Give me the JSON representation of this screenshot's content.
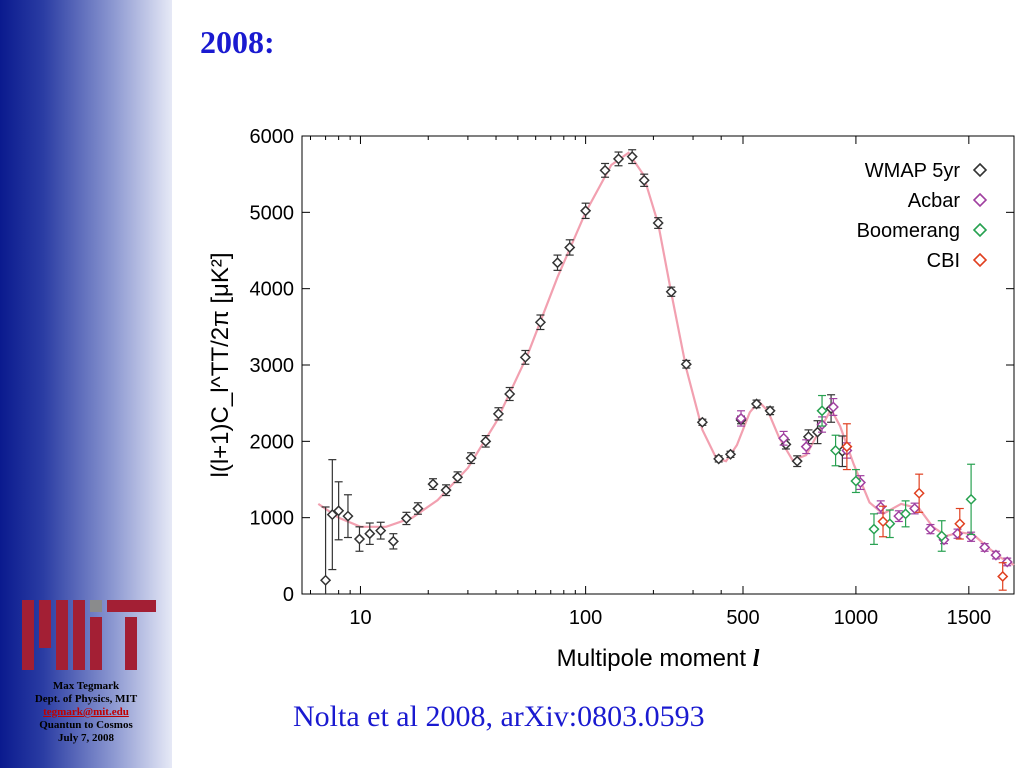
{
  "slide": {
    "title": "2008:",
    "citation": "Nolta et al 2008, arXiv:0803.0593"
  },
  "sidebar": {
    "logo_colors": {
      "red": "#a31f34",
      "gray": "#8a8b8c"
    },
    "footer": {
      "name": "Max Tegmark",
      "dept": "Dept. of Physics, MIT",
      "email": "tegmark@mit.edu",
      "event": "Quantun to Cosmos",
      "date": "July 7, 2008"
    }
  },
  "chart_data": {
    "type": "scatter",
    "title": "",
    "xlabel": "Multipole moment",
    "xlabel_symbol": "l",
    "ylabel": "l(l+1)C_l^TT/2π [μK²]",
    "x_scale": "log-linear hybrid (log up to l≈500, linear beyond)",
    "xlim": [
      5.5,
      1700
    ],
    "ylim": [
      0,
      6000
    ],
    "xticks": [
      10,
      100,
      500,
      1000,
      1500
    ],
    "yticks": [
      0,
      1000,
      2000,
      3000,
      4000,
      5000,
      6000
    ],
    "grid": false,
    "legend_position": "top-right",
    "series": [
      {
        "name": "WMAP 5yr",
        "color": "#333333",
        "points": [
          {
            "x": 7,
            "y": 180,
            "err": 960
          },
          {
            "x": 7.5,
            "y": 1040,
            "err": 720
          },
          {
            "x": 8,
            "y": 1090,
            "err": 380
          },
          {
            "x": 8.8,
            "y": 1020,
            "err": 280
          },
          {
            "x": 9.9,
            "y": 720,
            "err": 160
          },
          {
            "x": 11,
            "y": 790,
            "err": 140
          },
          {
            "x": 12.3,
            "y": 830,
            "err": 110
          },
          {
            "x": 14,
            "y": 690,
            "err": 100
          },
          {
            "x": 16,
            "y": 990,
            "err": 80
          },
          {
            "x": 18,
            "y": 1120,
            "err": 75
          },
          {
            "x": 21,
            "y": 1440,
            "err": 70
          },
          {
            "x": 24,
            "y": 1360,
            "err": 70
          },
          {
            "x": 27,
            "y": 1530,
            "err": 70
          },
          {
            "x": 31,
            "y": 1780,
            "err": 70
          },
          {
            "x": 36,
            "y": 2000,
            "err": 75
          },
          {
            "x": 41,
            "y": 2360,
            "err": 80
          },
          {
            "x": 46,
            "y": 2620,
            "err": 85
          },
          {
            "x": 54,
            "y": 3100,
            "err": 90
          },
          {
            "x": 63,
            "y": 3560,
            "err": 95
          },
          {
            "x": 75,
            "y": 4340,
            "err": 100
          },
          {
            "x": 85,
            "y": 4540,
            "err": 100
          },
          {
            "x": 100,
            "y": 5020,
            "err": 100
          },
          {
            "x": 122,
            "y": 5550,
            "err": 90
          },
          {
            "x": 140,
            "y": 5700,
            "err": 90
          },
          {
            "x": 161,
            "y": 5730,
            "err": 90
          },
          {
            "x": 182,
            "y": 5420,
            "err": 80
          },
          {
            "x": 210,
            "y": 4860,
            "err": 70
          },
          {
            "x": 240,
            "y": 3960,
            "err": 60
          },
          {
            "x": 280,
            "y": 3010,
            "err": 50
          },
          {
            "x": 330,
            "y": 2250,
            "err": 40
          },
          {
            "x": 390,
            "y": 1770,
            "err": 40
          },
          {
            "x": 440,
            "y": 1830,
            "err": 40
          },
          {
            "x": 490,
            "y": 2280,
            "err": 50
          },
          {
            "x": 560,
            "y": 2490,
            "err": 50
          },
          {
            "x": 620,
            "y": 2400,
            "err": 50
          },
          {
            "x": 690,
            "y": 1960,
            "err": 60
          },
          {
            "x": 740,
            "y": 1740,
            "err": 70
          },
          {
            "x": 790,
            "y": 2060,
            "err": 90
          },
          {
            "x": 830,
            "y": 2120,
            "err": 150
          },
          {
            "x": 890,
            "y": 2430,
            "err": 180
          },
          {
            "x": 940,
            "y": 1870,
            "err": 200
          }
        ]
      },
      {
        "name": "Acbar",
        "color": "#a040a0",
        "points": [
          {
            "x": 490,
            "y": 2300,
            "err": 100
          },
          {
            "x": 680,
            "y": 2040,
            "err": 90
          },
          {
            "x": 780,
            "y": 1930,
            "err": 90
          },
          {
            "x": 850,
            "y": 2220,
            "err": 100
          },
          {
            "x": 900,
            "y": 2450,
            "err": 110
          },
          {
            "x": 960,
            "y": 1880,
            "err": 100
          },
          {
            "x": 1020,
            "y": 1460,
            "err": 90
          },
          {
            "x": 1110,
            "y": 1140,
            "err": 80
          },
          {
            "x": 1190,
            "y": 1020,
            "err": 70
          },
          {
            "x": 1260,
            "y": 1120,
            "err": 70
          },
          {
            "x": 1330,
            "y": 850,
            "err": 60
          },
          {
            "x": 1390,
            "y": 710,
            "err": 50
          },
          {
            "x": 1450,
            "y": 790,
            "err": 60
          },
          {
            "x": 1510,
            "y": 750,
            "err": 60
          },
          {
            "x": 1570,
            "y": 610,
            "err": 50
          },
          {
            "x": 1620,
            "y": 510,
            "err": 50
          },
          {
            "x": 1670,
            "y": 420,
            "err": 50
          }
        ]
      },
      {
        "name": "Boomerang",
        "color": "#27a150",
        "points": [
          {
            "x": 850,
            "y": 2400,
            "err": 200
          },
          {
            "x": 910,
            "y": 1880,
            "err": 200
          },
          {
            "x": 1000,
            "y": 1480,
            "err": 150
          },
          {
            "x": 1080,
            "y": 850,
            "err": 200
          },
          {
            "x": 1150,
            "y": 920,
            "err": 180
          },
          {
            "x": 1220,
            "y": 1050,
            "err": 170
          },
          {
            "x": 1380,
            "y": 760,
            "err": 200
          },
          {
            "x": 1510,
            "y": 1240,
            "err": 460
          }
        ]
      },
      {
        "name": "CBI",
        "color": "#e04020",
        "points": [
          {
            "x": 960,
            "y": 1930,
            "err": 300
          },
          {
            "x": 1120,
            "y": 950,
            "err": 200
          },
          {
            "x": 1280,
            "y": 1320,
            "err": 250
          },
          {
            "x": 1460,
            "y": 920,
            "err": 200
          },
          {
            "x": 1650,
            "y": 230,
            "err": 180
          }
        ]
      }
    ],
    "model_curve": {
      "color": "#f2a0b0",
      "points": [
        [
          6.5,
          1180
        ],
        [
          8,
          1000
        ],
        [
          10,
          880
        ],
        [
          13,
          880
        ],
        [
          17,
          1000
        ],
        [
          22,
          1230
        ],
        [
          30,
          1650
        ],
        [
          40,
          2250
        ],
        [
          55,
          3120
        ],
        [
          75,
          4150
        ],
        [
          100,
          5000
        ],
        [
          130,
          5620
        ],
        [
          155,
          5780
        ],
        [
          180,
          5500
        ],
        [
          210,
          4850
        ],
        [
          240,
          3950
        ],
        [
          280,
          2950
        ],
        [
          330,
          2150
        ],
        [
          380,
          1780
        ],
        [
          420,
          1740
        ],
        [
          470,
          1950
        ],
        [
          530,
          2380
        ],
        [
          570,
          2520
        ],
        [
          610,
          2400
        ],
        [
          660,
          2050
        ],
        [
          720,
          1750
        ],
        [
          780,
          1820
        ],
        [
          840,
          2150
        ],
        [
          890,
          2420
        ],
        [
          930,
          2200
        ],
        [
          990,
          1700
        ],
        [
          1060,
          1200
        ],
        [
          1120,
          1050
        ],
        [
          1200,
          1180
        ],
        [
          1280,
          1120
        ],
        [
          1340,
          880
        ],
        [
          1400,
          760
        ],
        [
          1460,
          810
        ],
        [
          1520,
          780
        ],
        [
          1580,
          620
        ],
        [
          1640,
          480
        ],
        [
          1700,
          380
        ]
      ]
    }
  }
}
